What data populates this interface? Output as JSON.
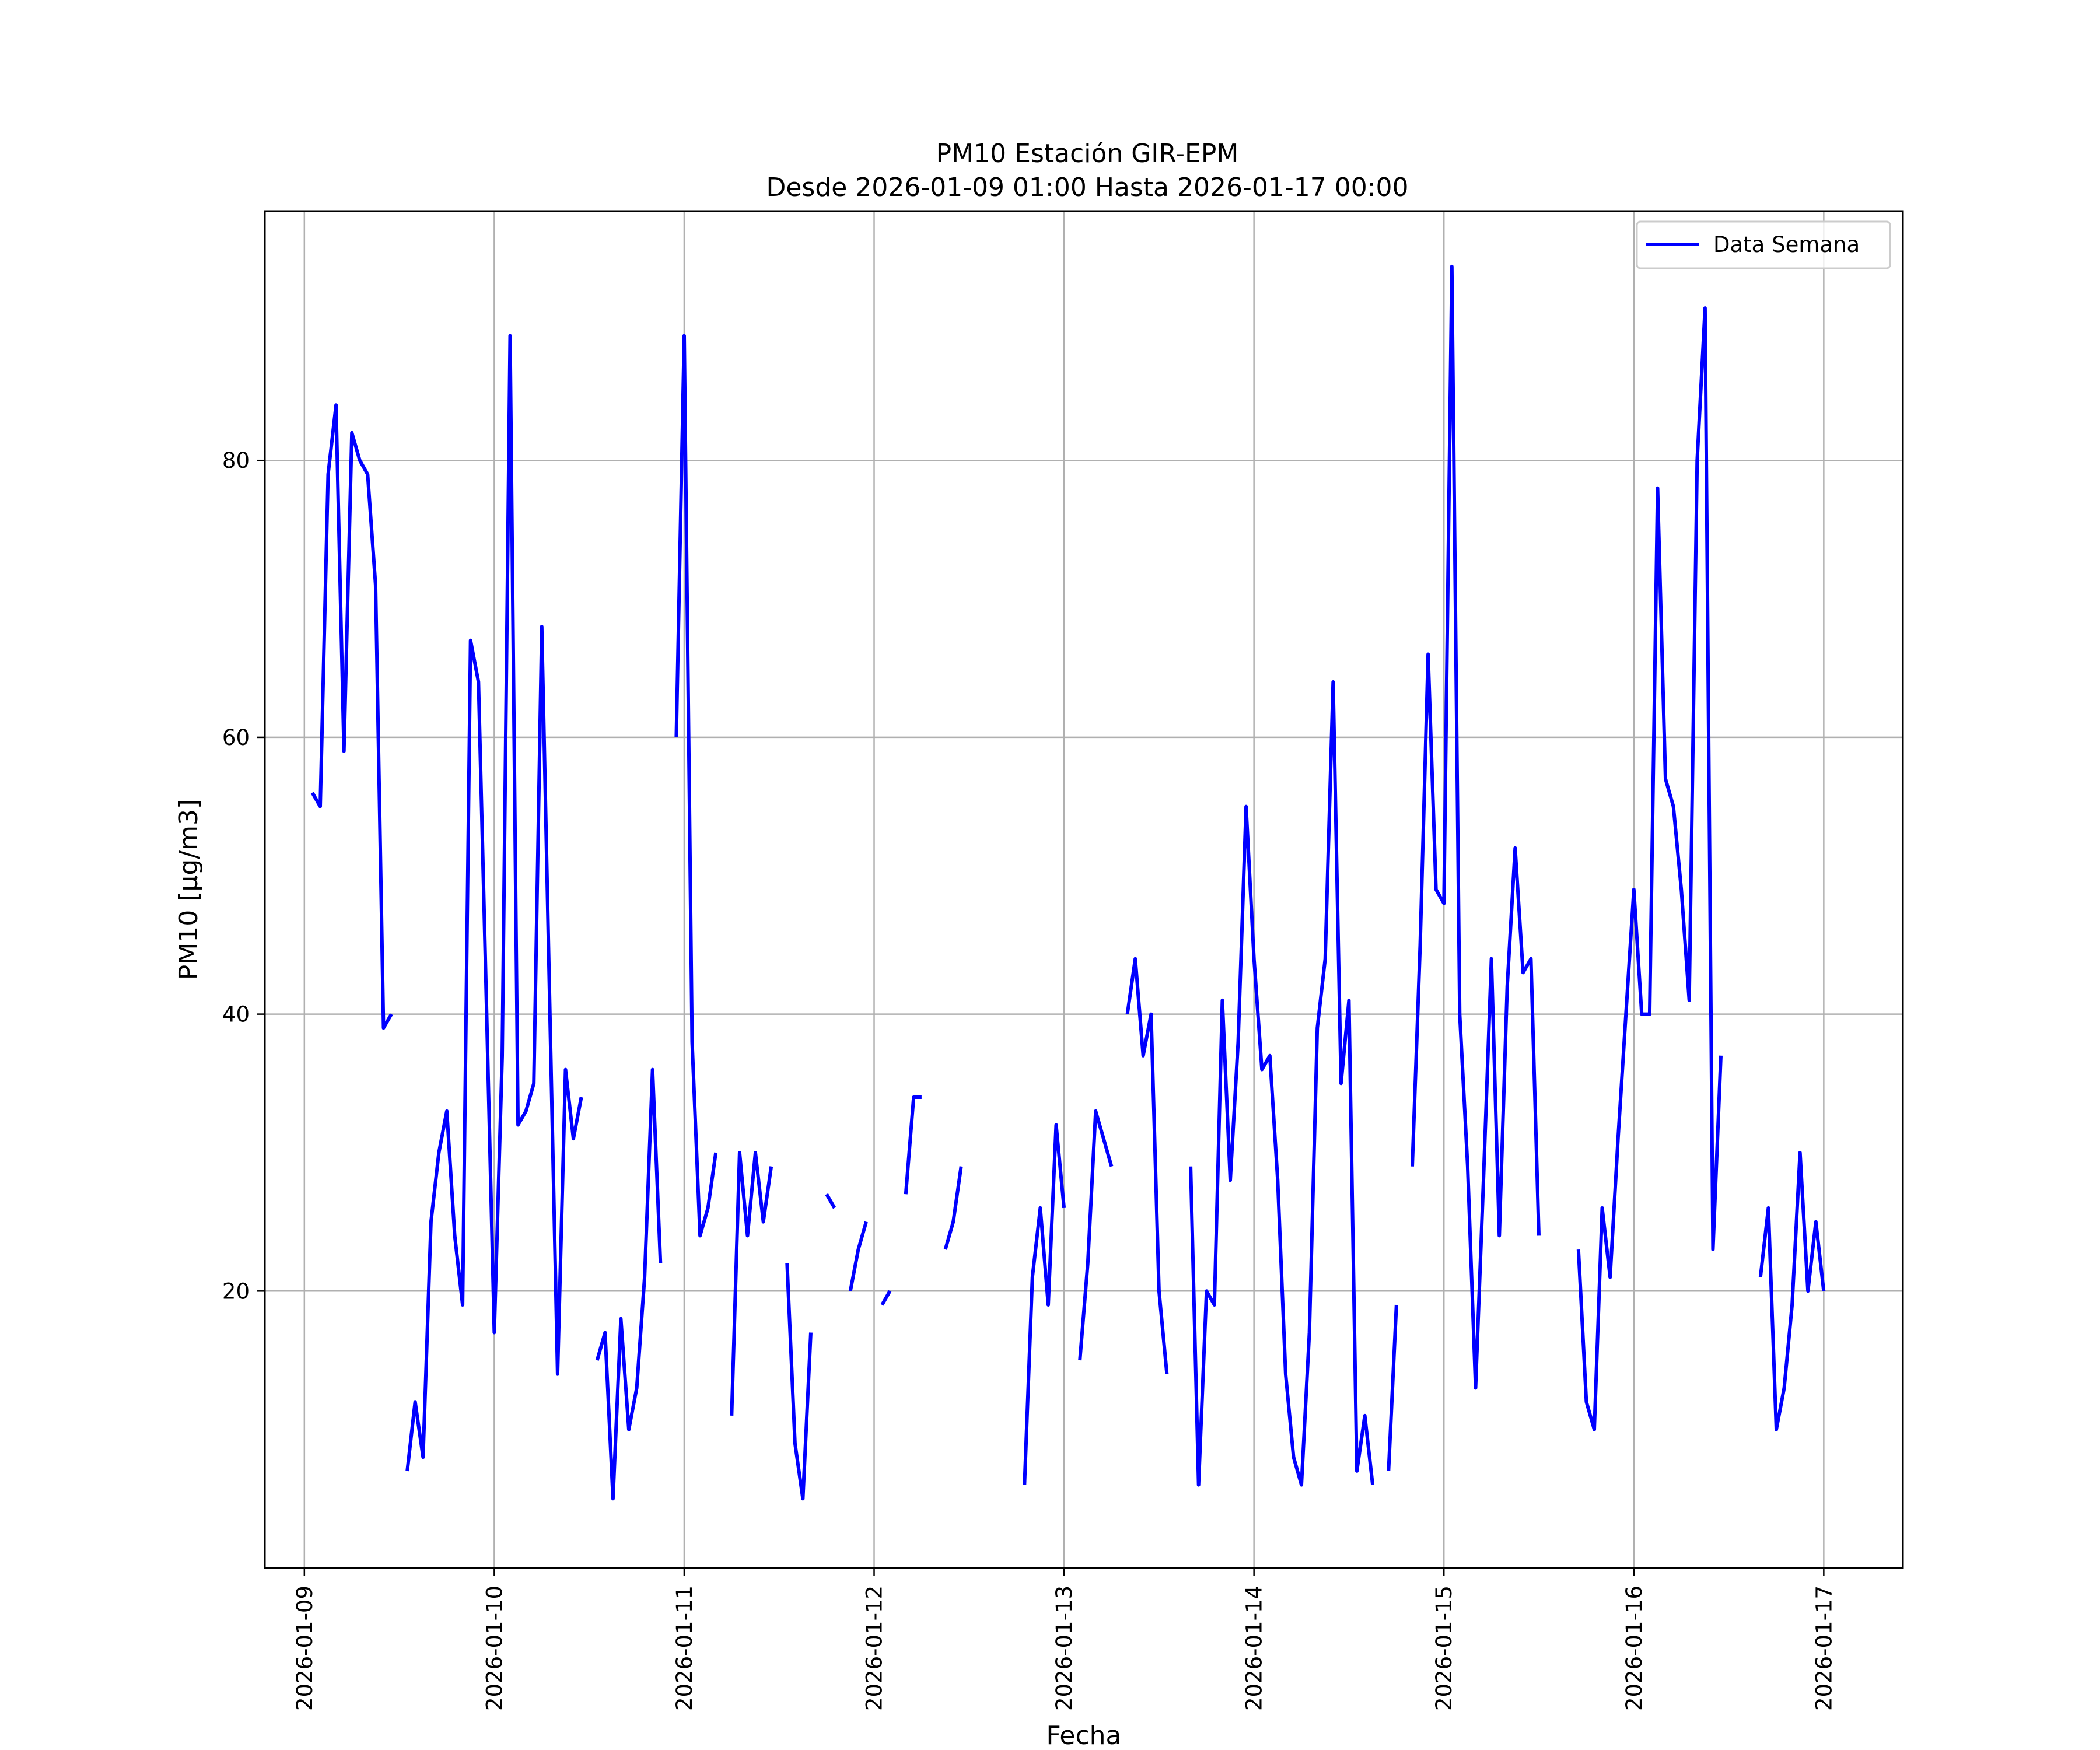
{
  "chart_data": {
    "type": "line",
    "title": "PM10 Estación GIR-EPM",
    "subtitle": "Desde 2026-01-09 01:00 Hasta 2026-01-17 00:00",
    "xlabel": "Fecha",
    "ylabel": "PM10 [μg/m3]",
    "xlim": [
      "2026-01-08 19:00",
      "2026-01-17 10:00"
    ],
    "ylim": [
      0,
      98
    ],
    "x_ticks": [
      "2026-01-09",
      "2026-01-10",
      "2026-01-11",
      "2026-01-12",
      "2026-01-13",
      "2026-01-14",
      "2026-01-15",
      "2026-01-16",
      "2026-01-17"
    ],
    "y_ticks": [
      20,
      40,
      60,
      80
    ],
    "grid": true,
    "legend_position": "upper right",
    "colors": {
      "line": "#0000ff",
      "grid": "#b0b0b0",
      "frame": "#000000",
      "background": "#ffffff"
    },
    "series": [
      {
        "name": "Data Semana",
        "color": "#0000ff",
        "segments": [
          [
            [
              "2026-01-09 01:00",
              56
            ],
            [
              "2026-01-09 02:00",
              55
            ],
            [
              "2026-01-09 03:00",
              79
            ],
            [
              "2026-01-09 04:00",
              84
            ],
            [
              "2026-01-09 05:00",
              59
            ],
            [
              "2026-01-09 06:00",
              82
            ],
            [
              "2026-01-09 07:00",
              80
            ],
            [
              "2026-01-09 08:00",
              79
            ],
            [
              "2026-01-09 09:00",
              71
            ],
            [
              "2026-01-09 10:00",
              39
            ],
            [
              "2026-01-09 11:00",
              40
            ]
          ],
          [
            [
              "2026-01-09 13:00",
              7
            ],
            [
              "2026-01-09 14:00",
              12
            ],
            [
              "2026-01-09 15:00",
              8
            ],
            [
              "2026-01-09 16:00",
              25
            ],
            [
              "2026-01-09 17:00",
              30
            ],
            [
              "2026-01-09 18:00",
              33
            ],
            [
              "2026-01-09 19:00",
              24
            ],
            [
              "2026-01-09 20:00",
              19
            ],
            [
              "2026-01-09 21:00",
              67
            ],
            [
              "2026-01-09 22:00",
              64
            ],
            [
              "2026-01-09 23:00",
              41
            ],
            [
              "2026-01-10 00:00",
              17
            ],
            [
              "2026-01-10 01:00",
              37
            ],
            [
              "2026-01-10 02:00",
              89
            ],
            [
              "2026-01-10 03:00",
              32
            ],
            [
              "2026-01-10 04:00",
              33
            ],
            [
              "2026-01-10 05:00",
              35
            ],
            [
              "2026-01-10 06:00",
              68
            ],
            [
              "2026-01-10 07:00",
              41
            ],
            [
              "2026-01-10 08:00",
              14
            ],
            [
              "2026-01-10 09:00",
              36
            ],
            [
              "2026-01-10 10:00",
              31
            ],
            [
              "2026-01-10 11:00",
              34
            ]
          ],
          [
            [
              "2026-01-10 13:00",
              15
            ],
            [
              "2026-01-10 14:00",
              17
            ],
            [
              "2026-01-10 15:00",
              5
            ],
            [
              "2026-01-10 16:00",
              18
            ],
            [
              "2026-01-10 17:00",
              10
            ],
            [
              "2026-01-10 18:00",
              13
            ],
            [
              "2026-01-10 19:00",
              21
            ],
            [
              "2026-01-10 20:00",
              36
            ],
            [
              "2026-01-10 21:00",
              22
            ]
          ],
          [
            [
              "2026-01-10 23:00",
              60
            ],
            [
              "2026-01-11 00:00",
              89
            ],
            [
              "2026-01-11 01:00",
              38
            ],
            [
              "2026-01-11 02:00",
              24
            ],
            [
              "2026-01-11 03:00",
              26
            ],
            [
              "2026-01-11 04:00",
              30
            ]
          ],
          [
            [
              "2026-01-11 06:00",
              11
            ],
            [
              "2026-01-11 07:00",
              30
            ],
            [
              "2026-01-11 08:00",
              24
            ],
            [
              "2026-01-11 09:00",
              30
            ],
            [
              "2026-01-11 10:00",
              25
            ],
            [
              "2026-01-11 11:00",
              29
            ]
          ],
          [
            [
              "2026-01-11 13:00",
              22
            ],
            [
              "2026-01-11 14:00",
              9
            ],
            [
              "2026-01-11 15:00",
              5
            ],
            [
              "2026-01-11 16:00",
              17
            ]
          ],
          [
            [
              "2026-01-11 18:00",
              27
            ],
            [
              "2026-01-11 19:00",
              26
            ]
          ],
          [
            [
              "2026-01-11 21:00",
              20
            ],
            [
              "2026-01-11 22:00",
              23
            ],
            [
              "2026-01-11 23:00",
              25
            ]
          ],
          [
            [
              "2026-01-12 01:00",
              19
            ],
            [
              "2026-01-12 02:00",
              20
            ]
          ],
          [
            [
              "2026-01-12 04:00",
              27
            ],
            [
              "2026-01-12 05:00",
              34
            ],
            [
              "2026-01-12 06:00",
              34
            ]
          ],
          [
            [
              "2026-01-12 09:00",
              23
            ],
            [
              "2026-01-12 10:00",
              25
            ],
            [
              "2026-01-12 11:00",
              29
            ]
          ],
          [
            [
              "2026-01-12 19:00",
              6
            ],
            [
              "2026-01-12 20:00",
              21
            ],
            [
              "2026-01-12 21:00",
              26
            ],
            [
              "2026-01-12 22:00",
              19
            ],
            [
              "2026-01-12 23:00",
              32
            ],
            [
              "2026-01-13 00:00",
              26
            ]
          ],
          [
            [
              "2026-01-13 02:00",
              15
            ],
            [
              "2026-01-13 03:00",
              22
            ],
            [
              "2026-01-13 04:00",
              33
            ],
            [
              "2026-01-13 05:00",
              31
            ],
            [
              "2026-01-13 06:00",
              29
            ]
          ],
          [
            [
              "2026-01-13 08:00",
              40
            ],
            [
              "2026-01-13 09:00",
              44
            ],
            [
              "2026-01-13 10:00",
              37
            ],
            [
              "2026-01-13 11:00",
              40
            ],
            [
              "2026-01-13 12:00",
              20
            ],
            [
              "2026-01-13 13:00",
              14
            ]
          ],
          [
            [
              "2026-01-13 16:00",
              29
            ],
            [
              "2026-01-13 17:00",
              6
            ],
            [
              "2026-01-13 18:00",
              20
            ],
            [
              "2026-01-13 19:00",
              19
            ],
            [
              "2026-01-13 20:00",
              41
            ],
            [
              "2026-01-13 21:00",
              28
            ],
            [
              "2026-01-13 22:00",
              38
            ],
            [
              "2026-01-13 23:00",
              55
            ],
            [
              "2026-01-14 00:00",
              44
            ],
            [
              "2026-01-14 01:00",
              36
            ],
            [
              "2026-01-14 02:00",
              37
            ],
            [
              "2026-01-14 03:00",
              28
            ],
            [
              "2026-01-14 04:00",
              14
            ],
            [
              "2026-01-14 05:00",
              8
            ],
            [
              "2026-01-14 06:00",
              6
            ],
            [
              "2026-01-14 07:00",
              17
            ],
            [
              "2026-01-14 08:00",
              39
            ],
            [
              "2026-01-14 09:00",
              44
            ],
            [
              "2026-01-14 10:00",
              64
            ],
            [
              "2026-01-14 11:00",
              35
            ],
            [
              "2026-01-14 12:00",
              41
            ],
            [
              "2026-01-14 13:00",
              7
            ],
            [
              "2026-01-14 14:00",
              11
            ],
            [
              "2026-01-14 15:00",
              6
            ]
          ],
          [
            [
              "2026-01-14 17:00",
              7
            ],
            [
              "2026-01-14 18:00",
              19
            ]
          ],
          [
            [
              "2026-01-14 20:00",
              29
            ],
            [
              "2026-01-14 21:00",
              45
            ],
            [
              "2026-01-14 22:00",
              66
            ],
            [
              "2026-01-14 23:00",
              49
            ],
            [
              "2026-01-15 00:00",
              48
            ],
            [
              "2026-01-15 01:00",
              94
            ],
            [
              "2026-01-15 02:00",
              40
            ],
            [
              "2026-01-15 03:00",
              29
            ],
            [
              "2026-01-15 04:00",
              13
            ],
            [
              "2026-01-15 05:00",
              28
            ],
            [
              "2026-01-15 06:00",
              44
            ],
            [
              "2026-01-15 07:00",
              24
            ],
            [
              "2026-01-15 08:00",
              42
            ],
            [
              "2026-01-15 09:00",
              52
            ],
            [
              "2026-01-15 10:00",
              43
            ],
            [
              "2026-01-15 11:00",
              44
            ],
            [
              "2026-01-15 12:00",
              24
            ]
          ],
          [
            [
              "2026-01-15 17:00",
              23
            ],
            [
              "2026-01-15 18:00",
              12
            ],
            [
              "2026-01-15 19:00",
              10
            ],
            [
              "2026-01-15 20:00",
              26
            ],
            [
              "2026-01-15 21:00",
              21
            ],
            [
              "2026-01-15 22:00",
              31
            ],
            [
              "2026-01-15 23:00",
              40
            ],
            [
              "2026-01-16 00:00",
              49
            ],
            [
              "2026-01-16 01:00",
              40
            ],
            [
              "2026-01-16 02:00",
              40
            ],
            [
              "2026-01-16 03:00",
              78
            ],
            [
              "2026-01-16 04:00",
              57
            ],
            [
              "2026-01-16 05:00",
              55
            ],
            [
              "2026-01-16 06:00",
              49
            ],
            [
              "2026-01-16 07:00",
              41
            ],
            [
              "2026-01-16 08:00",
              80
            ],
            [
              "2026-01-16 09:00",
              91
            ],
            [
              "2026-01-16 10:00",
              23
            ],
            [
              "2026-01-16 11:00",
              37
            ]
          ],
          [
            [
              "2026-01-16 16:00",
              21
            ],
            [
              "2026-01-16 17:00",
              26
            ],
            [
              "2026-01-16 18:00",
              10
            ],
            [
              "2026-01-16 19:00",
              13
            ],
            [
              "2026-01-16 20:00",
              19
            ],
            [
              "2026-01-16 21:00",
              30
            ],
            [
              "2026-01-16 22:00",
              20
            ],
            [
              "2026-01-16 23:00",
              25
            ],
            [
              "2026-01-17 00:00",
              20
            ]
          ]
        ]
      }
    ]
  }
}
